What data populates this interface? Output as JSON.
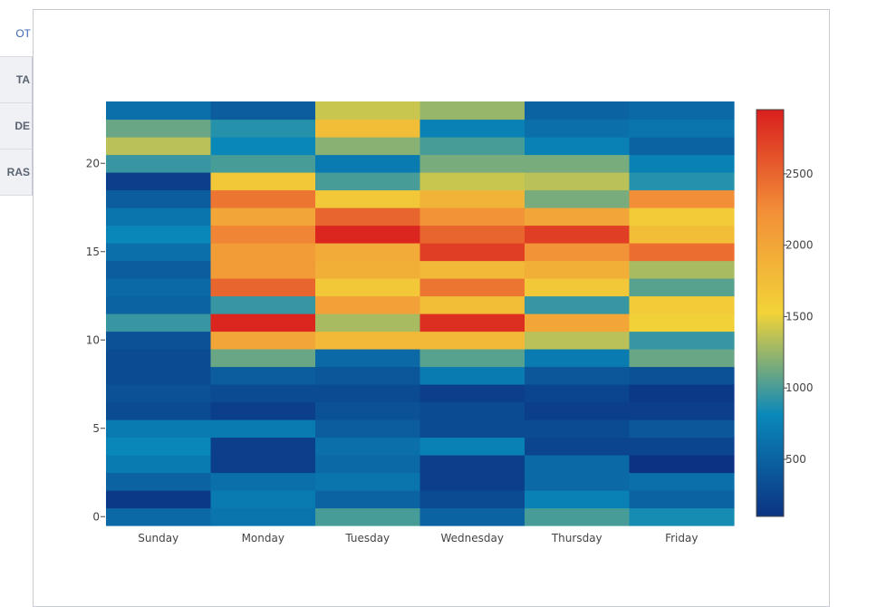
{
  "sidebar": {
    "items": [
      {
        "label": "OT",
        "active": true
      },
      {
        "label": "TA",
        "active": false
      },
      {
        "label": "DE",
        "active": false
      },
      {
        "label": "RAS",
        "active": false
      }
    ]
  },
  "chart_data": {
    "type": "heatmap",
    "x": [
      "Sunday",
      "Monday",
      "Tuesday",
      "Wednesday",
      "Thursday",
      "Friday"
    ],
    "y": [
      0,
      1,
      2,
      3,
      4,
      5,
      6,
      7,
      8,
      9,
      10,
      11,
      12,
      13,
      14,
      15,
      16,
      17,
      18,
      19,
      20,
      21,
      22,
      23
    ],
    "yticks": [
      0,
      5,
      10,
      15,
      20
    ],
    "ytick_labels": [
      "0",
      "5",
      "10",
      "15",
      "20"
    ],
    "z": [
      [
        550,
        650,
        1000,
        500,
        1000,
        850
      ],
      [
        150,
        700,
        500,
        300,
        750,
        500
      ],
      [
        500,
        600,
        650,
        200,
        550,
        600
      ],
      [
        700,
        200,
        550,
        200,
        550,
        100
      ],
      [
        800,
        200,
        600,
        750,
        250,
        250
      ],
      [
        700,
        700,
        450,
        300,
        300,
        400
      ],
      [
        300,
        200,
        350,
        300,
        200,
        200
      ],
      [
        350,
        300,
        300,
        200,
        250,
        150
      ],
      [
        300,
        450,
        400,
        700,
        400,
        350
      ],
      [
        300,
        1100,
        550,
        1050,
        700,
        1100
      ],
      [
        350,
        2000,
        1800,
        1800,
        1350,
        950
      ],
      [
        950,
        2900,
        1300,
        2850,
        2000,
        1550
      ],
      [
        500,
        950,
        2050,
        1750,
        950,
        1600
      ],
      [
        550,
        2500,
        1650,
        2400,
        1650,
        1050
      ],
      [
        450,
        2100,
        1900,
        1800,
        1900,
        1300
      ],
      [
        600,
        2100,
        1950,
        2750,
        2200,
        2450
      ],
      [
        800,
        2300,
        2900,
        2500,
        2750,
        1750
      ],
      [
        650,
        2000,
        2500,
        2200,
        2000,
        1600
      ],
      [
        450,
        2400,
        1650,
        1850,
        1150,
        2250
      ],
      [
        200,
        1650,
        1000,
        1400,
        1350,
        900
      ],
      [
        950,
        1000,
        700,
        1150,
        1150,
        750
      ],
      [
        1350,
        800,
        1200,
        1000,
        750,
        500
      ],
      [
        1100,
        900,
        1750,
        750,
        600,
        650
      ],
      [
        600,
        450,
        1400,
        1250,
        500,
        550
      ]
    ],
    "zmin": 100,
    "zmax": 2950,
    "colorbar": {
      "ticks": [
        500,
        1000,
        1500,
        2000,
        2500
      ],
      "tick_labels": [
        "500",
        "1000",
        "1500",
        "2000",
        "2500"
      ]
    },
    "colorscale": [
      "#0c3383",
      "#0a88ba",
      "#f2d338",
      "#f28f38",
      "#d91e1e"
    ],
    "title": "",
    "xlabel": "",
    "ylabel": ""
  }
}
